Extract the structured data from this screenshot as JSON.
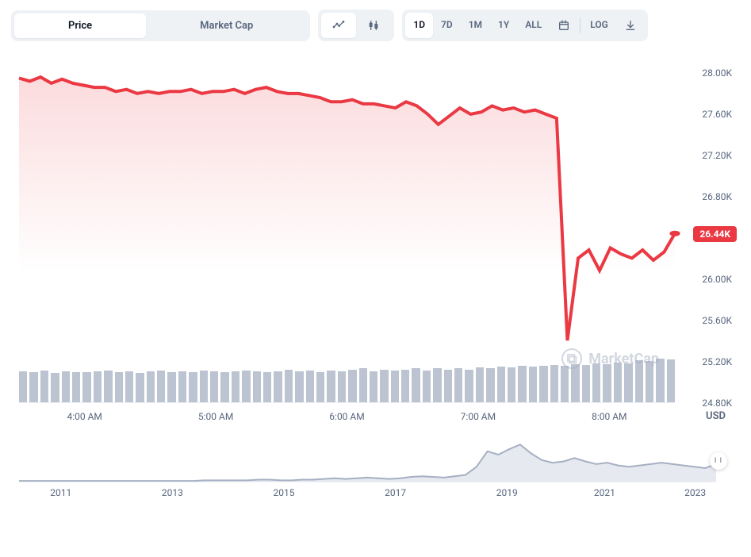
{
  "toolbar": {
    "metric": {
      "items": [
        "Price",
        "Market Cap"
      ],
      "active_index": 0
    },
    "tools": {
      "items": [
        "line-chart-icon",
        "candlestick-icon"
      ],
      "active_index": 0
    },
    "range": {
      "items": [
        "1D",
        "7D",
        "1M",
        "1Y",
        "ALL"
      ],
      "active_index": 0,
      "extra_icons": [
        "calendar-icon"
      ],
      "trailing": [
        "LOG",
        "download-icon"
      ]
    }
  },
  "chart": {
    "type": "area-line",
    "line_color": "#ea3943",
    "line_width": 2,
    "area_top_color": "#ea394322",
    "area_bottom_color": "#ea394300",
    "background_color": "#ffffff",
    "grid_color": "#eef0f4",
    "ylim": [
      24.8,
      28.2
    ],
    "yticks": [
      28.0,
      27.6,
      27.2,
      26.8,
      26.44,
      26.0,
      25.6,
      25.2,
      24.8
    ],
    "ytick_labels": [
      "28.00K",
      "27.60K",
      "27.20K",
      "26.80K",
      "26.44K",
      "26.00K",
      "25.60K",
      "25.20K",
      "24.80K"
    ],
    "ybadge_index": 4,
    "ybadge_color": "#ea3943",
    "y_unit": "USD",
    "xticks": [
      "4:00 AM",
      "5:00 AM",
      "6:00 AM",
      "7:00 AM",
      "8:00 AM"
    ],
    "xtick_positions_pct": [
      10,
      30,
      50,
      70,
      90
    ],
    "series": [
      27.95,
      27.92,
      27.96,
      27.9,
      27.94,
      27.9,
      27.88,
      27.86,
      27.86,
      27.82,
      27.84,
      27.8,
      27.82,
      27.8,
      27.82,
      27.82,
      27.84,
      27.8,
      27.82,
      27.82,
      27.84,
      27.8,
      27.84,
      27.86,
      27.82,
      27.8,
      27.8,
      27.78,
      27.76,
      27.72,
      27.72,
      27.74,
      27.7,
      27.7,
      27.68,
      27.66,
      27.72,
      27.68,
      27.6,
      27.5,
      27.58,
      27.66,
      27.6,
      27.62,
      27.68,
      27.64,
      27.66,
      27.62,
      27.64,
      27.6,
      27.56,
      25.4,
      26.2,
      26.28,
      26.08,
      26.3,
      26.24,
      26.2,
      26.28,
      26.18,
      26.26,
      26.44
    ],
    "end_dot_color": "#ea3943",
    "volume": {
      "bar_color": "#a6b0c3",
      "bar_opacity": 0.75,
      "count": 62,
      "heights_pct": [
        70,
        68,
        72,
        66,
        70,
        68,
        67,
        70,
        72,
        68,
        70,
        66,
        70,
        72,
        68,
        70,
        68,
        72,
        70,
        68,
        70,
        72,
        70,
        68,
        70,
        74,
        70,
        72,
        68,
        72,
        70,
        73,
        76,
        70,
        74,
        72,
        74,
        76,
        72,
        76,
        74,
        76,
        74,
        78,
        76,
        80,
        78,
        82,
        80,
        82,
        84,
        82,
        86,
        84,
        88,
        86,
        90,
        88,
        94,
        92,
        98,
        96
      ]
    },
    "watermark": "MarketCap"
  },
  "range_slider": {
    "line_color": "#a6b0c3",
    "fill_color": "#d6dbe4",
    "series": [
      1,
      1,
      1,
      1,
      1,
      1,
      1,
      1,
      1,
      1,
      1,
      1,
      1,
      1,
      1,
      1,
      1,
      2,
      2,
      2,
      2,
      2,
      3,
      3,
      2,
      2,
      3,
      3,
      4,
      5,
      4,
      5,
      6,
      5,
      4,
      5,
      7,
      8,
      7,
      6,
      8,
      10,
      22,
      45,
      40,
      48,
      55,
      42,
      32,
      28,
      30,
      35,
      30,
      26,
      28,
      24,
      22,
      24,
      26,
      28,
      26,
      24,
      22,
      20,
      26
    ],
    "ylim": [
      0,
      60
    ],
    "xticks": [
      "2011",
      "2013",
      "2015",
      "2017",
      "2019",
      "2021",
      "2023"
    ],
    "xtick_positions_pct": [
      6,
      22,
      38,
      54,
      70,
      84,
      97
    ]
  },
  "colors": {
    "text_muted": "#58667e",
    "text_strong": "#0d1421",
    "panel_bg": "#eff2f5"
  }
}
